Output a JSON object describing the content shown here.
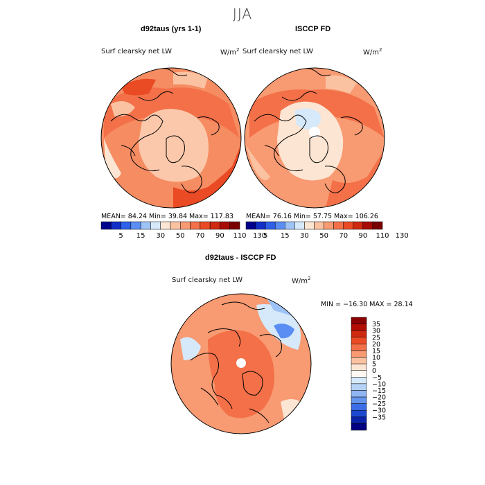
{
  "season": "JJA",
  "panels": [
    {
      "title": "d92taus (yrs 1-1)",
      "field": "Surf clearsky net LW",
      "units": "W/m",
      "units_sup": "2",
      "stats": "MEAN=   84.24   Min=   39.84   Max=  117.83"
    },
    {
      "title": "ISCCP FD",
      "field": "Surf clearsky net LW",
      "units": "W/m",
      "units_sup": "2",
      "stats": "MEAN=   76.16   Min=   57.75   Max=  106.26"
    },
    {
      "title": "d92taus - ISCCP FD",
      "field": "Surf clearsky net LW",
      "units": "W/m",
      "units_sup": "2",
      "stats": "MIN = −16.30 MAX =   28.14"
    }
  ],
  "chart_data": [
    {
      "type": "heatmap",
      "projection": "north polar stereographic",
      "title": "d92taus (yrs 1-1)",
      "variable": "Surf clearsky net LW",
      "units": "W/m2",
      "mean": 84.24,
      "min": 39.84,
      "max": 117.83,
      "contour_levels": [
        5,
        15,
        30,
        50,
        70,
        90,
        110,
        130
      ]
    },
    {
      "type": "heatmap",
      "projection": "north polar stereographic",
      "title": "ISCCP FD",
      "variable": "Surf clearsky net LW",
      "units": "W/m2",
      "mean": 76.16,
      "min": 57.75,
      "max": 106.26,
      "contour_levels": [
        5,
        15,
        30,
        50,
        70,
        90,
        110,
        130
      ]
    },
    {
      "type": "heatmap",
      "projection": "north polar stereographic",
      "title": "d92taus - ISCCP FD",
      "variable": "Surf clearsky net LW",
      "units": "W/m2",
      "min": -16.3,
      "max": 28.14,
      "contour_levels": [
        35,
        30,
        25,
        20,
        15,
        10,
        5,
        0,
        -5,
        -10,
        -15,
        -20,
        -25,
        -30,
        -35
      ]
    }
  ],
  "colorbar_abs": {
    "labels": [
      "5",
      "15",
      "30",
      "50",
      "70",
      "90",
      "110",
      "130"
    ],
    "colors": [
      "#00008c",
      "#1230c8",
      "#2e60e8",
      "#5a8ef2",
      "#9dc3f7",
      "#d6e9fb",
      "#fde5d3",
      "#fbc2a2",
      "#f89a72",
      "#f37048",
      "#ea4a24",
      "#cf2a10",
      "#a80c04",
      "#7a0000"
    ]
  },
  "colorbar_diff": {
    "labels": [
      "35",
      "30",
      "25",
      "20",
      "15",
      "10",
      "5",
      "0",
      "−5",
      "−10",
      "−15",
      "−20",
      "−25",
      "−30",
      "−35"
    ],
    "colors": [
      "#8b0000",
      "#b30d03",
      "#cf2a10",
      "#ea4a24",
      "#f37048",
      "#f89a72",
      "#fbc2a2",
      "#fde5d3",
      "#fff8f2",
      "#d6e9fb",
      "#b6d3f7",
      "#8fb5f2",
      "#6594ec",
      "#3b6ee6",
      "#1c48d0",
      "#0a22a8",
      "#000080"
    ]
  },
  "colors": {
    "ocean_base": "#f58c62",
    "land_base": "#fbc8ab",
    "coast": "#000000"
  }
}
